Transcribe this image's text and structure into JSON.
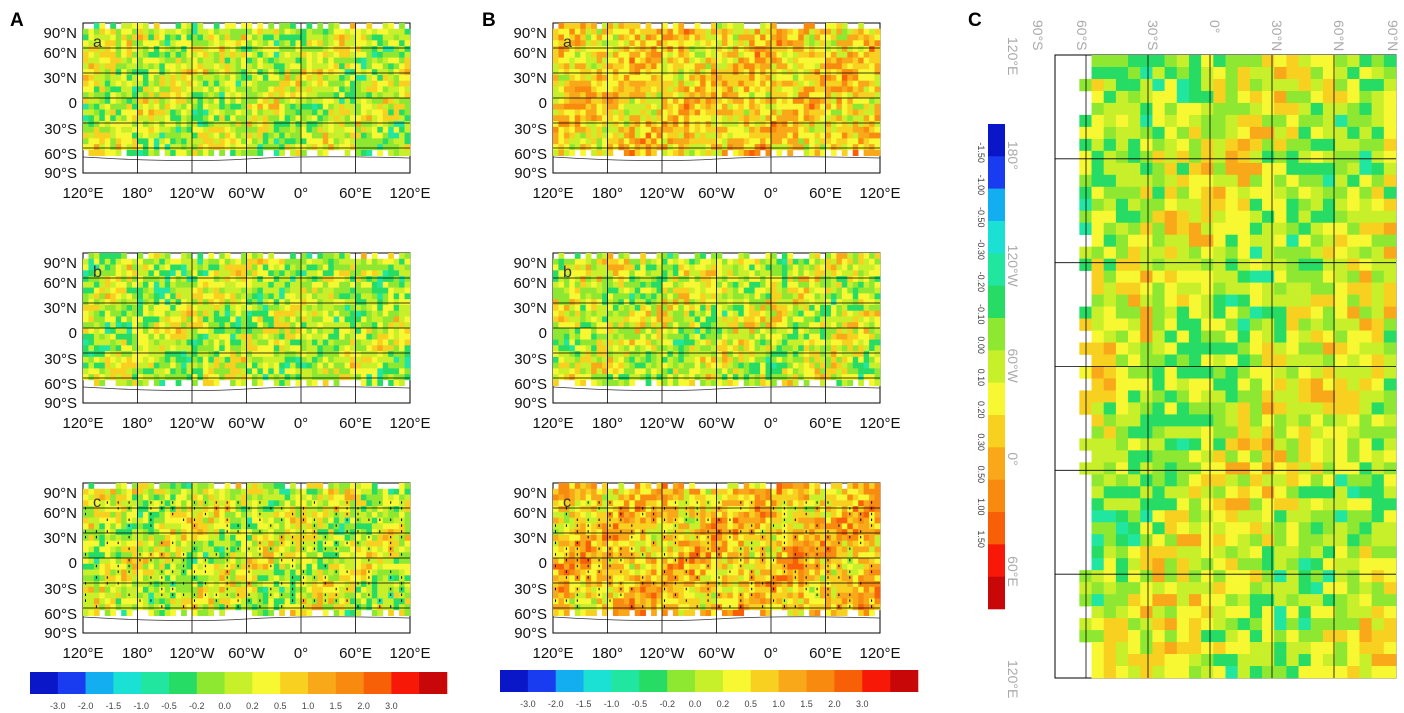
{
  "panel_letters": {
    "A": "A",
    "B": "B",
    "C": "C"
  },
  "colorbar": {
    "colors": [
      "#0a17c8",
      "#1a3cf0",
      "#12aef0",
      "#1be0d4",
      "#20e6a0",
      "#27dc64",
      "#8ee832",
      "#c8f02a",
      "#f8f832",
      "#f8d020",
      "#f8a818",
      "#f88a10",
      "#f86008",
      "#f81808",
      "#c80808"
    ],
    "main_ticks": [
      "-3.0",
      "-2.0",
      "-1.5",
      "-1.0",
      "-0.5",
      "-0.2",
      "0.0",
      "0.2",
      "0.5",
      "1.0",
      "1.5",
      "2.0",
      "3.0"
    ],
    "c_ticks": [
      "-1.50",
      "-1.00",
      "-0.50",
      "-0.30",
      "-0.20",
      "-0.10",
      "0.00",
      "0.10",
      "0.20",
      "0.30",
      "0.50",
      "1.00",
      "1.50"
    ]
  },
  "axis_labels": {
    "lat": [
      "90°N",
      "60°N",
      "30°N",
      "0",
      "30°S",
      "60°S",
      "90°S"
    ],
    "lon": [
      "120°E",
      "180°",
      "120°W",
      "60°W",
      "0°",
      "60°E",
      "120°E"
    ],
    "c_lat": [
      "90°S",
      "60°S",
      "30°S",
      "0°",
      "30°N",
      "60°N",
      "90°N"
    ],
    "c_lon": [
      "120°E",
      "180°",
      "120°W",
      "60°W",
      "0°",
      "60°E",
      "120°E"
    ]
  },
  "chart_data": [
    {
      "panel": "A",
      "sub": "a",
      "type": "heatmap",
      "bias": 0.0,
      "seed": 11,
      "stipple": false
    },
    {
      "panel": "A",
      "sub": "b",
      "type": "heatmap",
      "bias": -0.05,
      "seed": 23,
      "stipple": false
    },
    {
      "panel": "A",
      "sub": "c",
      "type": "heatmap",
      "bias": 0.05,
      "seed": 37,
      "stipple": true
    },
    {
      "panel": "B",
      "sub": "a",
      "type": "heatmap",
      "bias": 0.45,
      "seed": 51,
      "stipple": false
    },
    {
      "panel": "B",
      "sub": "b",
      "type": "heatmap",
      "bias": 0.05,
      "seed": 67,
      "stipple": false
    },
    {
      "panel": "B",
      "sub": "c",
      "type": "heatmap",
      "bias": 0.55,
      "seed": 83,
      "stipple": true
    },
    {
      "panel": "C",
      "type": "heatmap",
      "bias": 0.0,
      "seed": 97,
      "stipple": false
    }
  ]
}
